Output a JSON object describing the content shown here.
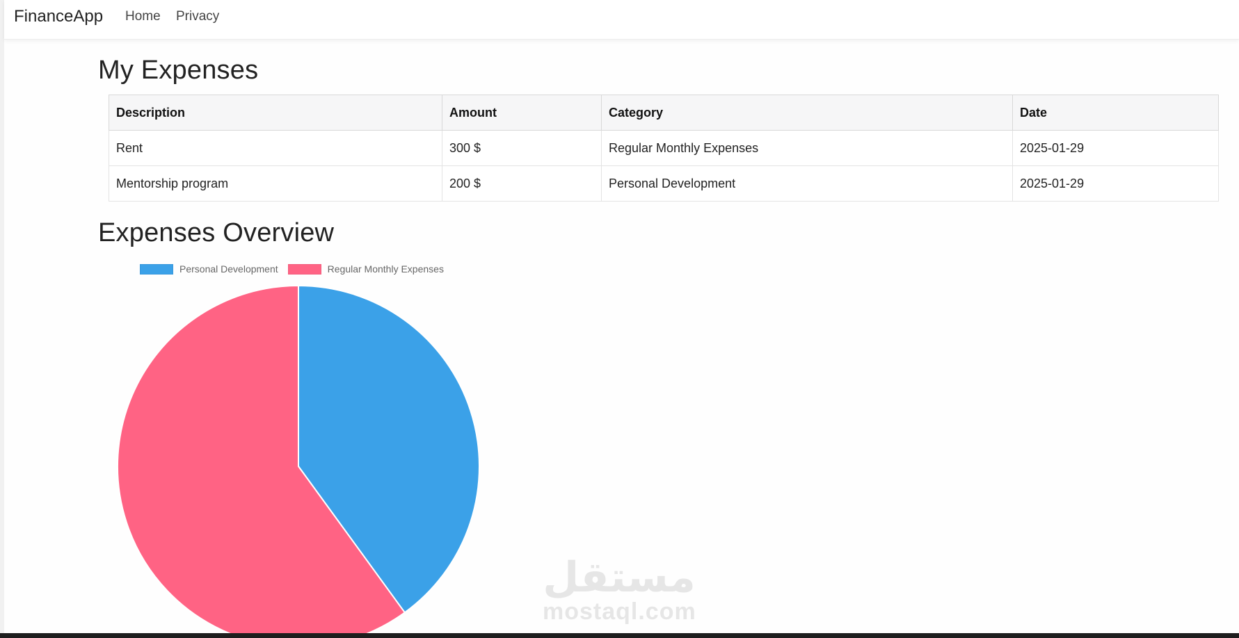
{
  "navbar": {
    "brand": "FinanceApp",
    "links": [
      {
        "label": "Home"
      },
      {
        "label": "Privacy"
      }
    ]
  },
  "expenses": {
    "title": "My Expenses",
    "columns": [
      "Description",
      "Amount",
      "Category",
      "Date"
    ],
    "rows": [
      {
        "description": "Rent",
        "amount": "300 $",
        "category": "Regular Monthly Expenses",
        "date": "2025-01-29"
      },
      {
        "description": "Mentorship program",
        "amount": "200 $",
        "category": "Personal Development",
        "date": "2025-01-29"
      }
    ]
  },
  "overview": {
    "title": "Expenses Overview",
    "legend": [
      {
        "label": "Personal Development",
        "color": "#3ba1e8"
      },
      {
        "label": "Regular Monthly Expenses",
        "color": "#ff6384"
      }
    ]
  },
  "chart_data": {
    "type": "pie",
    "title": "Expenses Overview",
    "categories": [
      "Personal Development",
      "Regular Monthly Expenses"
    ],
    "values": [
      200,
      300
    ],
    "colors": [
      "#3ba1e8",
      "#ff6384"
    ],
    "legend_position": "top"
  },
  "watermark": {
    "arabic": "مستقل",
    "latin": "mostaql.com"
  }
}
